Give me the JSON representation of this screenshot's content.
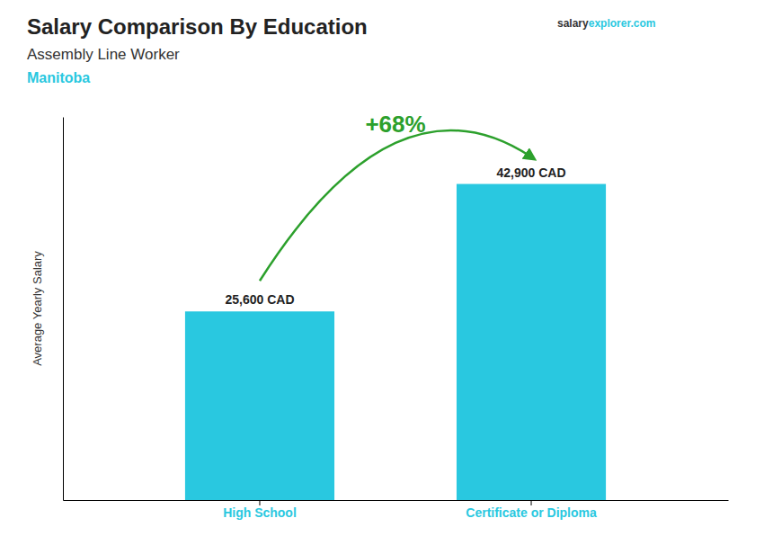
{
  "chart_data": {
    "type": "bar",
    "title": "Salary Comparison By Education",
    "subtitle": "Assembly Line Worker",
    "annotations": [
      "Manitoba",
      "salary",
      "explorer.com",
      "+68%"
    ],
    "ylabel": "Average Yearly Salary",
    "categories": [
      "High School",
      "Certificate or Diploma"
    ],
    "values": [
      25600,
      42900
    ],
    "value_labels": [
      "25,600 CAD",
      "42,900 CAD"
    ],
    "data_labels": true,
    "color": "#29C8E0",
    "ylim": [
      0,
      52000
    ],
    "tick_labels": "x",
    "grid": false
  }
}
